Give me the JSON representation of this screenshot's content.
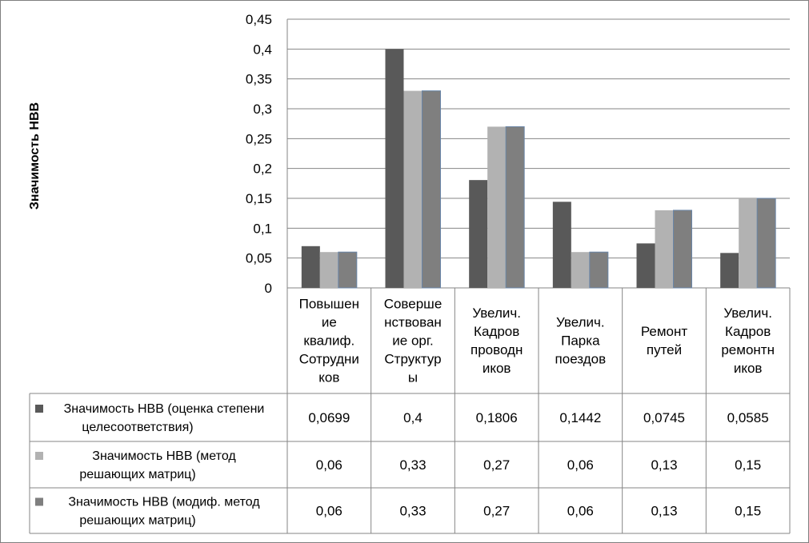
{
  "chart_data": {
    "type": "bar",
    "ylabel": "Значимость НВВ",
    "ylim": [
      0,
      0.45
    ],
    "yticks": [
      "0",
      "0,05",
      "0,1",
      "0,15",
      "0,2",
      "0,25",
      "0,3",
      "0,35",
      "0,4",
      "0,45"
    ],
    "grid": true,
    "legend_placement": "data-table",
    "categories": [
      [
        "Повышен",
        "ие",
        "квалиф.",
        "Сотрудни",
        "ков"
      ],
      [
        "Соверше",
        "нствован",
        "ие орг.",
        "Структур",
        "ы"
      ],
      [
        "Увелич.",
        "Кадров",
        "проводн",
        "иков"
      ],
      [
        "Увелич.",
        "Парка",
        "поездов"
      ],
      [
        "Ремонт",
        "путей"
      ],
      [
        "Увелич.",
        "Кадров",
        "ремонтн",
        "иков"
      ]
    ],
    "series": [
      {
        "name": [
          "Значимость НВВ (оценка степени",
          "целесоответствия)"
        ],
        "color": "#595959",
        "values": [
          0.0699,
          0.4,
          0.1806,
          0.1442,
          0.0745,
          0.0585
        ],
        "labels": [
          "0,0699",
          "0,4",
          "0,1806",
          "0,1442",
          "0,0745",
          "0,0585"
        ]
      },
      {
        "name": [
          "Значимость НВВ (метод",
          "решающих матриц)"
        ],
        "color": "#b2b2b2",
        "values": [
          0.06,
          0.33,
          0.27,
          0.06,
          0.13,
          0.15
        ],
        "labels": [
          "0,06",
          "0,33",
          "0,27",
          "0,06",
          "0,13",
          "0,15"
        ]
      },
      {
        "name": [
          "Значимость НВВ (модиф. метод",
          "решающих матриц)"
        ],
        "color": "#7f7f7f",
        "values": [
          0.06,
          0.33,
          0.27,
          0.06,
          0.13,
          0.15
        ],
        "labels": [
          "0,06",
          "0,33",
          "0,27",
          "0,06",
          "0,13",
          "0,15"
        ]
      }
    ]
  }
}
